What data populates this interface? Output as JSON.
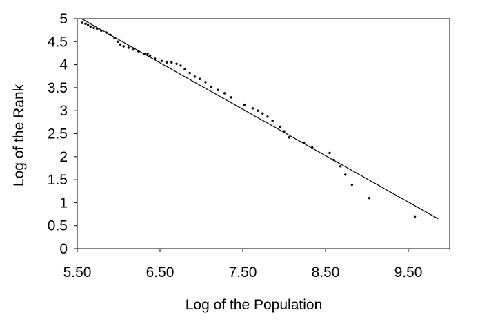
{
  "chart_data": {
    "type": "scatter",
    "title": "",
    "xlabel": "Log of the Population",
    "ylabel": "Log of the Rank",
    "xlim": [
      5.5,
      10.0
    ],
    "ylim": [
      0,
      5
    ],
    "grid": false,
    "legend": "none",
    "x_ticks": [
      "5.50",
      "6.50",
      "7.50",
      "8.50",
      "9.50"
    ],
    "x_tick_values": [
      5.5,
      6.5,
      7.5,
      8.5,
      9.5
    ],
    "y_ticks": [
      "0",
      "0.5",
      "1",
      "1.5",
      "2",
      "2.5",
      "3",
      "3.5",
      "4",
      "4.5",
      "5"
    ],
    "y_tick_values": [
      0,
      0.5,
      1,
      1.5,
      2,
      2.5,
      3,
      3.5,
      4,
      4.5,
      5
    ],
    "trend_line": {
      "x": [
        5.56,
        9.86
      ],
      "y": [
        4.99,
        0.65
      ]
    },
    "points": [
      [
        5.56,
        4.91
      ],
      [
        5.6,
        4.89
      ],
      [
        5.63,
        4.86
      ],
      [
        5.66,
        4.83
      ],
      [
        5.7,
        4.8
      ],
      [
        5.74,
        4.78
      ],
      [
        5.79,
        4.74
      ],
      [
        5.85,
        4.7
      ],
      [
        5.9,
        4.65
      ],
      [
        5.95,
        4.58
      ],
      [
        5.99,
        4.5
      ],
      [
        6.02,
        4.44
      ],
      [
        6.06,
        4.4
      ],
      [
        6.12,
        4.37
      ],
      [
        6.18,
        4.33
      ],
      [
        6.24,
        4.29
      ],
      [
        6.31,
        4.24
      ],
      [
        6.35,
        4.24
      ],
      [
        6.38,
        4.2
      ],
      [
        6.44,
        4.13
      ],
      [
        6.52,
        4.08
      ],
      [
        6.58,
        4.05
      ],
      [
        6.64,
        4.05
      ],
      [
        6.7,
        4.02
      ],
      [
        6.75,
        3.98
      ],
      [
        6.8,
        3.9
      ],
      [
        6.86,
        3.82
      ],
      [
        6.92,
        3.74
      ],
      [
        6.98,
        3.69
      ],
      [
        7.05,
        3.62
      ],
      [
        7.12,
        3.52
      ],
      [
        7.2,
        3.45
      ],
      [
        7.28,
        3.38
      ],
      [
        7.36,
        3.29
      ],
      [
        7.52,
        3.13
      ],
      [
        7.62,
        3.05
      ],
      [
        7.68,
        3.0
      ],
      [
        7.74,
        2.94
      ],
      [
        7.8,
        2.87
      ],
      [
        7.86,
        2.78
      ],
      [
        7.95,
        2.65
      ],
      [
        8.0,
        2.55
      ],
      [
        8.06,
        2.42
      ],
      [
        8.24,
        2.3
      ],
      [
        8.34,
        2.2
      ],
      [
        8.55,
        2.08
      ],
      [
        8.6,
        1.93
      ],
      [
        8.68,
        1.79
      ],
      [
        8.74,
        1.61
      ],
      [
        8.82,
        1.39
      ],
      [
        9.03,
        1.1
      ],
      [
        9.58,
        0.7
      ]
    ]
  }
}
